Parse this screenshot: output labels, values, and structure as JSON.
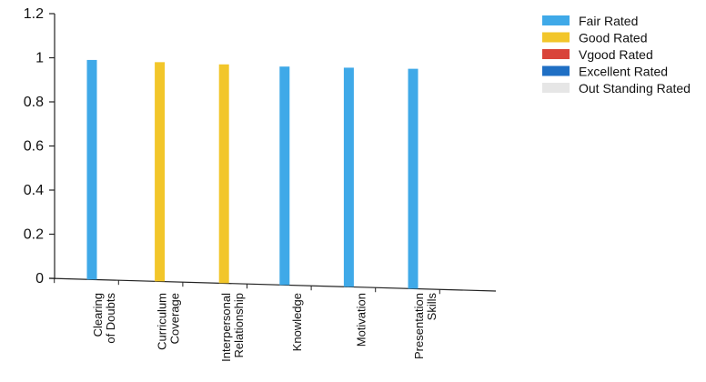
{
  "chart_data": {
    "type": "bar",
    "title": "",
    "xlabel": "",
    "ylabel": "",
    "ylim": [
      0,
      1.2
    ],
    "yticks": [
      0,
      0.2,
      0.4,
      0.6,
      0.8,
      1,
      1.2
    ],
    "ytick_labels": [
      "0",
      "0.2",
      "0.4",
      "0.6",
      "0.8",
      "1",
      "1.2"
    ],
    "grid": false,
    "legend_position": "top-right",
    "categories": [
      "Clearing of Doubts",
      "Curriculum Coverage",
      "Interpersonal Relationship",
      "Knowledge",
      "Motivation",
      "Presentation Skills"
    ],
    "category_label_lines": [
      [
        "Clearing",
        "of Doubts"
      ],
      [
        "Curriculum",
        "Coverage"
      ],
      [
        "Interpersonal",
        "Relationship"
      ],
      [
        "Knowledge"
      ],
      [
        "Motivation"
      ],
      [
        "Presentation",
        "Skills"
      ]
    ],
    "series": [
      {
        "name": "Fair Rated",
        "color": "#3FA9E8",
        "values": [
          0.99,
          0,
          0,
          0.96,
          0.955,
          0.95
        ]
      },
      {
        "name": "Good Rated",
        "color": "#F2C62A",
        "values": [
          0,
          0.98,
          0.97,
          0,
          0,
          0
        ]
      },
      {
        "name": "Vgood Rated",
        "color": "#D9443A",
        "values": [
          0,
          0,
          0,
          0,
          0,
          0
        ]
      },
      {
        "name": "Excellent Rated",
        "color": "#1F6FC4",
        "values": [
          0,
          0,
          0,
          0,
          0,
          0
        ]
      },
      {
        "name": "Out Standing Rated",
        "color": "#E6E6E6",
        "values": [
          0,
          0,
          0,
          0,
          0,
          0
        ]
      }
    ]
  }
}
